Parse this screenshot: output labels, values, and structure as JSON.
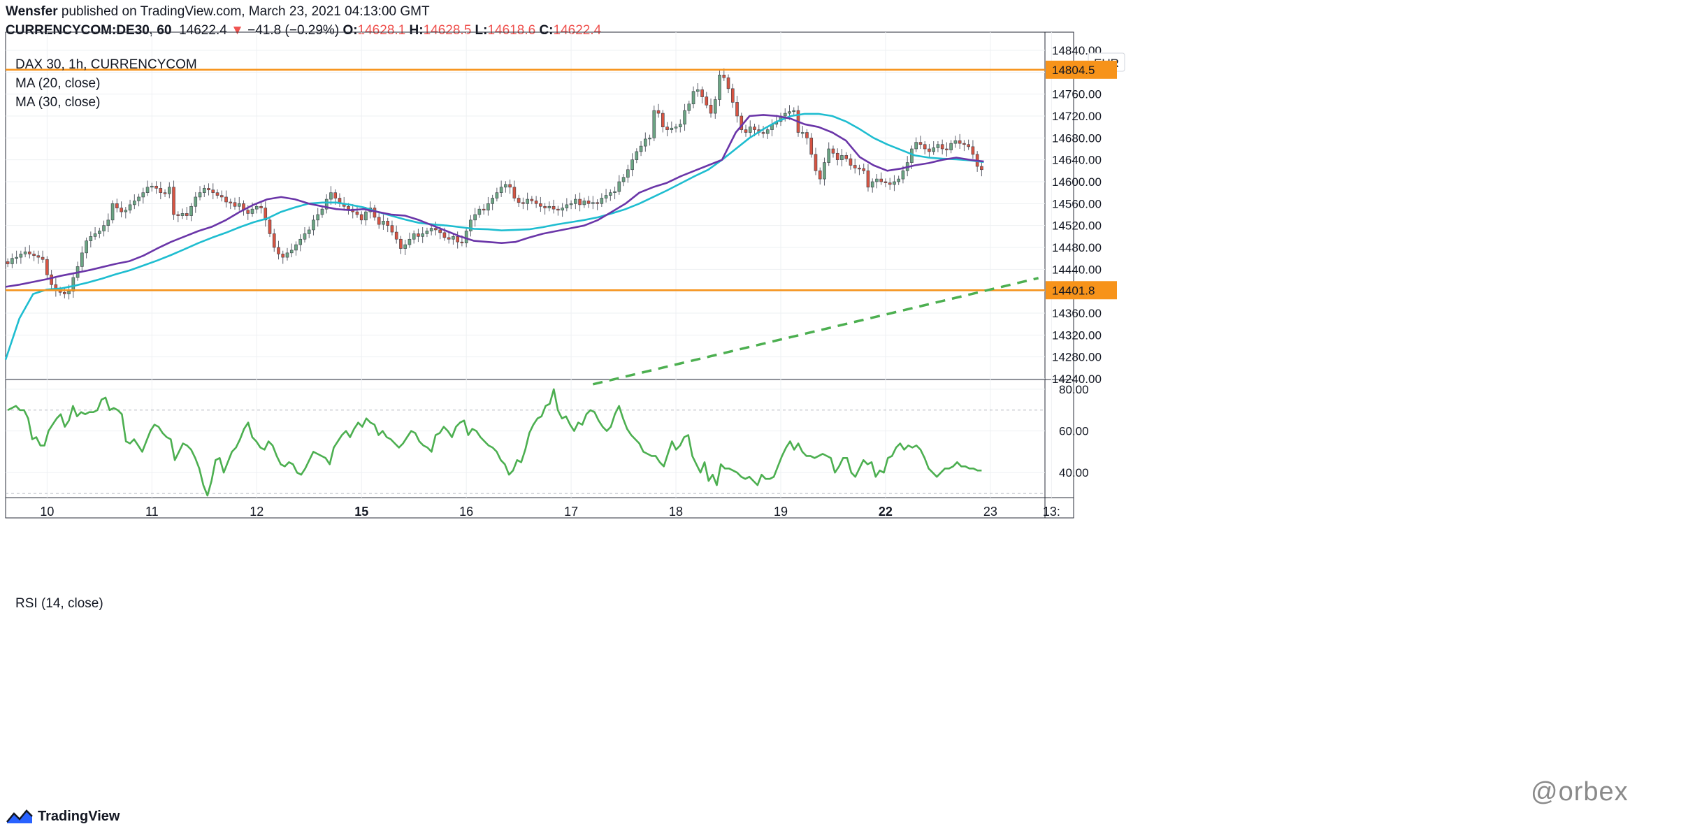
{
  "header": {
    "author": "Wensfer",
    "published_text": "published on TradingView.com, March 23, 2021 04:13:00 GMT",
    "symbol_line": "CURRENCYCOM:DE30, 60",
    "last_price": "14622.4",
    "change": "−41.8 (−0.29%)",
    "o_label": "O:",
    "o_value": "14628.1",
    "h_label": "H:",
    "h_value": "14628.5",
    "l_label": "L:",
    "l_value": "14618.6",
    "c_label": "C:",
    "c_value": "14622.4"
  },
  "legend": {
    "title": "DAX 30, 1h, CURRENCYCOM",
    "ma20": "MA (20, close)",
    "ma30": "MA (30, close)",
    "rsi": "RSI (14, close)"
  },
  "currency": "EUR",
  "brand": "TradingView",
  "watermark": "@orbex",
  "colors": {
    "up": "#6ba583",
    "down": "#d75442",
    "ma20": "#6a35a8",
    "ma30": "#1ebdd0",
    "hline": "#f7931a",
    "trend": "#4caf50",
    "rsi": "#4caf50"
  },
  "chart_data": [
    {
      "type": "candlestick",
      "ylim": [
        14230,
        14850
      ],
      "y_ticks": [
        14840.0,
        14800.0,
        14760.0,
        14720.0,
        14680.0,
        14640.0,
        14600.0,
        14560.0,
        14520.0,
        14480.0,
        14440.0,
        14400.0,
        14360.0,
        14320.0,
        14280.0,
        14240.0
      ],
      "x_labels": [
        {
          "text": "10",
          "bold": false,
          "bar": 9
        },
        {
          "text": "11",
          "bold": false,
          "bar": 33
        },
        {
          "text": "12",
          "bold": false,
          "bar": 57
        },
        {
          "text": "15",
          "bold": true,
          "bar": 81
        },
        {
          "text": "16",
          "bold": false,
          "bar": 105
        },
        {
          "text": "17",
          "bold": false,
          "bar": 129
        },
        {
          "text": "18",
          "bold": false,
          "bar": 153
        },
        {
          "text": "19",
          "bold": false,
          "bar": 177
        },
        {
          "text": "22",
          "bold": true,
          "bar": 201
        },
        {
          "text": "23",
          "bold": false,
          "bar": 225
        },
        {
          "text": "13:",
          "bold": false,
          "bar": 239
        }
      ],
      "horizontal_levels": [
        {
          "value": 14804.5,
          "label": "14804.5"
        },
        {
          "value": 14401.8,
          "label": "14401.8"
        }
      ],
      "trendline": {
        "from": {
          "bar": 134,
          "price": 14230
        },
        "to": {
          "bar": 236,
          "price": 14424
        },
        "style": "dashed"
      },
      "close": [
        14450,
        14460,
        14462,
        14468,
        14472,
        14468,
        14465,
        14462,
        14458,
        14430,
        14412,
        14402,
        14398,
        14395,
        14400,
        14425,
        14445,
        14470,
        14492,
        14500,
        14505,
        14510,
        14520,
        14530,
        14560,
        14552,
        14545,
        14548,
        14558,
        14565,
        14572,
        14580,
        14590,
        14592,
        14588,
        14580,
        14578,
        14590,
        14540,
        14538,
        14542,
        14538,
        14555,
        14572,
        14580,
        14588,
        14585,
        14580,
        14575,
        14572,
        14563,
        14562,
        14555,
        14560,
        14548,
        14542,
        14550,
        14555,
        14552,
        14530,
        14505,
        14480,
        14468,
        14462,
        14470,
        14475,
        14485,
        14495,
        14505,
        14512,
        14530,
        14540,
        14550,
        14568,
        14580,
        14570,
        14560,
        14555,
        14550,
        14545,
        14540,
        14530,
        14545,
        14552,
        14535,
        14522,
        14528,
        14520,
        14508,
        14495,
        14478,
        14485,
        14495,
        14505,
        14500,
        14505,
        14510,
        14515,
        14512,
        14507,
        14498,
        14495,
        14500,
        14490,
        14488,
        14510,
        14530,
        14540,
        14550,
        14548,
        14560,
        14570,
        14580,
        14590,
        14595,
        14590,
        14570,
        14562,
        14560,
        14568,
        14565,
        14560,
        14555,
        14552,
        14555,
        14550,
        14548,
        14552,
        14558,
        14560,
        14568,
        14558,
        14565,
        14560,
        14562,
        14560,
        14570,
        14575,
        14580,
        14582,
        14600,
        14608,
        14622,
        14640,
        14655,
        14665,
        14678,
        14680,
        14730,
        14725,
        14700,
        14695,
        14698,
        14700,
        14705,
        14730,
        14742,
        14765,
        14768,
        14755,
        14740,
        14725,
        14750,
        14795,
        14790,
        14770,
        14745,
        14720,
        14695,
        14690,
        14700,
        14695,
        14690,
        14688,
        14695,
        14705,
        14710,
        14720,
        14725,
        14728,
        14730,
        14690,
        14690,
        14680,
        14650,
        14620,
        14605,
        14635,
        14660,
        14652,
        14640,
        14648,
        14642,
        14630,
        14625,
        14624,
        14620,
        14590,
        14600,
        14605,
        14600,
        14598,
        14595,
        14600,
        14605,
        14620,
        14635,
        14660,
        14672,
        14668,
        14660,
        14655,
        14662,
        14668,
        14660,
        14658,
        14670,
        14675,
        14670,
        14668,
        14664,
        14650,
        14628,
        14622
      ],
      "ma20": [
        14408,
        14412,
        14417,
        14422,
        14428,
        14433,
        14438,
        14444,
        14450,
        14455,
        14465,
        14478,
        14490,
        14500,
        14510,
        14518,
        14530,
        14545,
        14558,
        14568,
        14572,
        14568,
        14560,
        14555,
        14550,
        14548,
        14550,
        14545,
        14540,
        14538,
        14530,
        14520,
        14510,
        14500,
        14492,
        14490,
        14488,
        14490,
        14498,
        14505,
        14510,
        14515,
        14520,
        14530,
        14545,
        14560,
        14580,
        14590,
        14598,
        14610,
        14620,
        14630,
        14640,
        14690,
        14720,
        14722,
        14720,
        14715,
        14705,
        14700,
        14690,
        14675,
        14645,
        14630,
        14620,
        14624,
        14630,
        14634,
        14640,
        14644,
        14640,
        14637
      ],
      "ma30": [
        14275,
        14350,
        14395,
        14403,
        14405,
        14410,
        14416,
        14423,
        14431,
        14438,
        14447,
        14456,
        14466,
        14477,
        14488,
        14498,
        14507,
        14517,
        14526,
        14533,
        14545,
        14553,
        14560,
        14562,
        14562,
        14558,
        14553,
        14545,
        14538,
        14531,
        14525,
        14522,
        14520,
        14517,
        14514,
        14513,
        14511,
        14512,
        14513,
        14517,
        14522,
        14526,
        14530,
        14535,
        14542,
        14550,
        14560,
        14572,
        14584,
        14597,
        14610,
        14622,
        14640,
        14660,
        14680,
        14696,
        14710,
        14720,
        14724,
        14724,
        14720,
        14710,
        14696,
        14680,
        14668,
        14658,
        14648,
        14644,
        14642,
        14641,
        14639,
        14636
      ],
      "rsi": {
        "ylim": [
          28,
          84
        ],
        "y_ticks": [
          80.0,
          60.0,
          40.0
        ],
        "bands": [
          70,
          30
        ],
        "values": [
          70,
          71,
          72,
          70,
          70,
          66,
          56,
          57,
          53,
          53,
          60,
          63,
          66,
          68,
          62,
          65,
          72,
          67,
          69,
          68,
          69,
          69,
          70,
          75,
          76,
          70,
          71,
          70,
          68,
          55,
          54,
          56,
          53,
          50,
          55,
          60,
          63,
          62,
          59,
          57,
          56,
          46,
          50,
          54,
          53,
          51,
          47,
          42,
          34,
          29,
          36,
          46,
          47,
          40,
          45,
          50,
          52,
          56,
          61,
          64,
          57,
          55,
          52,
          51,
          55,
          53,
          48,
          44,
          43,
          45,
          44,
          40,
          39,
          42,
          46,
          50,
          49,
          48,
          47,
          44,
          52,
          55,
          58,
          60,
          57,
          61,
          64,
          62,
          66,
          64,
          63,
          58,
          60,
          57,
          56,
          54,
          52,
          54,
          57,
          60,
          59,
          55,
          53,
          52,
          50,
          58,
          59,
          62,
          60,
          57,
          62,
          64,
          65,
          58,
          61,
          60,
          57,
          55,
          53,
          52,
          50,
          46,
          44,
          39,
          41,
          46,
          45,
          51,
          59,
          63,
          66,
          67,
          72,
          73,
          80,
          70,
          66,
          67,
          63,
          60,
          64,
          63,
          68,
          70,
          69,
          65,
          62,
          60,
          62,
          68,
          72,
          66,
          61,
          58,
          56,
          54,
          50,
          49,
          48,
          48,
          45,
          43,
          49,
          55,
          51,
          53,
          57,
          58,
          48,
          44,
          40,
          45,
          36,
          39,
          34,
          44,
          42,
          42,
          41,
          40,
          38,
          37,
          38,
          36,
          34,
          39,
          37,
          37,
          38,
          43,
          48,
          52,
          55,
          51,
          54,
          50,
          48,
          48,
          47,
          48,
          49,
          48,
          47,
          40,
          43,
          47,
          47,
          40,
          38,
          42,
          46,
          44,
          45,
          38,
          41,
          40,
          47,
          48,
          52,
          54,
          51,
          53,
          52,
          53,
          51,
          47,
          42,
          40,
          38,
          40,
          42,
          42,
          43,
          45,
          43,
          43,
          42,
          42,
          41,
          41
        ]
      }
    }
  ]
}
